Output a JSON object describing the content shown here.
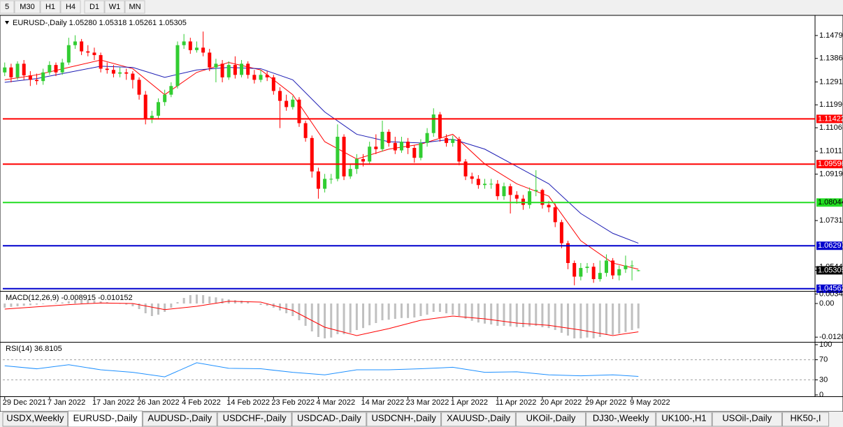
{
  "toolbar": {
    "timeframes": [
      "5",
      "M30",
      "H1",
      "H4",
      "D1",
      "W1",
      "MN"
    ]
  },
  "chart_data": [
    {
      "type": "candlestick",
      "title": "EURUSD-,Daily  1.05280 1.05318 1.05261 1.05305",
      "up_color": "#32cd32",
      "down_color": "#ff0000",
      "xlim": [
        -0.3,
        126.6
      ],
      "xticks": [
        {
          "value": 0,
          "label": "29 Dec 2021"
        },
        {
          "value": 7,
          "label": "7 Jan 2022"
        },
        {
          "value": 14,
          "label": "17 Jan 2022"
        },
        {
          "value": 21,
          "label": "26 Jan 2022"
        },
        {
          "value": 28,
          "label": "4 Feb 2022"
        },
        {
          "value": 35,
          "label": "14 Feb 2022"
        },
        {
          "value": 42,
          "label": "23 Feb 2022"
        },
        {
          "value": 49,
          "label": "4 Mar 2022"
        },
        {
          "value": 56,
          "label": "14 Mar 2022"
        },
        {
          "value": 63,
          "label": "23 Mar 2022"
        },
        {
          "value": 70,
          "label": "1 Apr 2022"
        },
        {
          "value": 77,
          "label": "11 Apr 2022"
        },
        {
          "value": 84,
          "label": "20 Apr 2022"
        },
        {
          "value": 91,
          "label": "29 Apr 2022"
        },
        {
          "value": 98,
          "label": "9 May 2022"
        }
      ],
      "ylim": [
        1.045,
        1.1552
      ],
      "yticks": [
        {
          "value": 1.1479,
          "label": "1.14790"
        },
        {
          "value": 1.13865,
          "label": "1.13865"
        },
        {
          "value": 1.12915,
          "label": "1.12915"
        },
        {
          "value": 1.1199,
          "label": "1.11990"
        },
        {
          "value": 1.11065,
          "label": "1.11065"
        },
        {
          "value": 1.10115,
          "label": "1.10115"
        },
        {
          "value": 1.0919,
          "label": "1.09190"
        },
        {
          "value": 1.07315,
          "label": "1.07315"
        },
        {
          "value": 1.0544,
          "label": "1.05440"
        }
      ],
      "levels": [
        {
          "value": 1.11422,
          "color": "#ff0000",
          "text_color": "#ffffff"
        },
        {
          "value": 1.09596,
          "color": "#ff0000",
          "text_color": "#ffffff"
        },
        {
          "value": 1.08044,
          "color": "#22dd22",
          "text_color": "#000000"
        },
        {
          "value": 1.06297,
          "color": "#0000cd",
          "text_color": "#ffffff"
        },
        {
          "value": 1.04562,
          "color": "#0000cd",
          "text_color": "#ffffff"
        }
      ],
      "last_price": 1.05305,
      "ohlc": [
        [
          1.133,
          1.137,
          1.1315,
          1.135
        ],
        [
          1.135,
          1.1365,
          1.129,
          1.131
        ],
        [
          1.131,
          1.1375,
          1.13,
          1.1365
        ],
        [
          1.1365,
          1.138,
          1.13,
          1.1318
        ],
        [
          1.1318,
          1.1335,
          1.1275,
          1.13
        ],
        [
          1.13,
          1.1325,
          1.128,
          1.1295
        ],
        [
          1.1295,
          1.1345,
          1.128,
          1.133
        ],
        [
          1.133,
          1.1375,
          1.132,
          1.136
        ],
        [
          1.136,
          1.137,
          1.1315,
          1.133
        ],
        [
          1.133,
          1.1385,
          1.132,
          1.137
        ],
        [
          1.137,
          1.147,
          1.136,
          1.144
        ],
        [
          1.144,
          1.148,
          1.1425,
          1.1455
        ],
        [
          1.1455,
          1.1465,
          1.14,
          1.1415
        ],
        [
          1.1415,
          1.144,
          1.1395,
          1.141
        ],
        [
          1.141,
          1.143,
          1.138,
          1.14
        ],
        [
          1.14,
          1.141,
          1.133,
          1.1345
        ],
        [
          1.1345,
          1.137,
          1.1325,
          1.134
        ],
        [
          1.134,
          1.136,
          1.131,
          1.1325
        ],
        [
          1.1325,
          1.135,
          1.131,
          1.133
        ],
        [
          1.133,
          1.1345,
          1.13,
          1.1325
        ],
        [
          1.1325,
          1.1335,
          1.1265,
          1.13
        ],
        [
          1.13,
          1.131,
          1.122,
          1.124
        ],
        [
          1.124,
          1.1255,
          1.112,
          1.1145
        ],
        [
          1.1145,
          1.1175,
          1.1125,
          1.1155
        ],
        [
          1.1155,
          1.1225,
          1.114,
          1.121
        ],
        [
          1.121,
          1.126,
          1.1195,
          1.124
        ],
        [
          1.124,
          1.129,
          1.123,
          1.1275
        ],
        [
          1.1275,
          1.1455,
          1.1265,
          1.144
        ],
        [
          1.144,
          1.1485,
          1.1425,
          1.1455
        ],
        [
          1.1455,
          1.147,
          1.1405,
          1.142
        ],
        [
          1.142,
          1.1455,
          1.141,
          1.143
        ],
        [
          1.143,
          1.1495,
          1.1395,
          1.141
        ],
        [
          1.141,
          1.1425,
          1.1335,
          1.135
        ],
        [
          1.135,
          1.1385,
          1.129,
          1.1365
        ],
        [
          1.1365,
          1.138,
          1.129,
          1.131
        ],
        [
          1.131,
          1.1375,
          1.13,
          1.136
        ],
        [
          1.136,
          1.1395,
          1.1305,
          1.132
        ],
        [
          1.132,
          1.138,
          1.131,
          1.1365
        ],
        [
          1.1365,
          1.1375,
          1.1305,
          1.132
        ],
        [
          1.132,
          1.134,
          1.1285,
          1.13
        ],
        [
          1.13,
          1.134,
          1.129,
          1.132
        ],
        [
          1.132,
          1.1335,
          1.1295,
          1.131
        ],
        [
          1.131,
          1.132,
          1.124,
          1.1255
        ],
        [
          1.1255,
          1.127,
          1.1105,
          1.1215
        ],
        [
          1.1215,
          1.124,
          1.1175,
          1.119
        ],
        [
          1.119,
          1.1235,
          1.118,
          1.122
        ],
        [
          1.122,
          1.123,
          1.111,
          1.1125
        ],
        [
          1.1125,
          1.1135,
          1.105,
          1.1065
        ],
        [
          1.1065,
          1.1075,
          1.0905,
          1.093
        ],
        [
          1.093,
          1.0945,
          1.082,
          1.086
        ],
        [
          1.086,
          1.092,
          1.0845,
          1.09
        ],
        [
          1.09,
          1.092,
          1.088,
          1.09
        ],
        [
          1.09,
          1.112,
          1.089,
          1.107
        ],
        [
          1.107,
          1.108,
          1.0895,
          1.091
        ],
        [
          1.091,
          1.096,
          1.09,
          1.094
        ],
        [
          1.094,
          1.1,
          1.092,
          1.098
        ],
        [
          1.098,
          1.1,
          1.095,
          1.097
        ],
        [
          1.097,
          1.105,
          1.096,
          1.103
        ],
        [
          1.103,
          1.108,
          1.1,
          1.102
        ],
        [
          1.102,
          1.1135,
          1.101,
          1.109
        ],
        [
          1.109,
          1.11,
          1.103,
          1.1045
        ],
        [
          1.1045,
          1.107,
          1.1,
          1.1015
        ],
        [
          1.1015,
          1.107,
          1.1005,
          1.105
        ],
        [
          1.105,
          1.1065,
          1.1,
          1.1025
        ],
        [
          1.1025,
          1.1035,
          1.0965,
          1.0985
        ],
        [
          1.0985,
          1.106,
          1.0975,
          1.1045
        ],
        [
          1.1045,
          1.1105,
          1.103,
          1.1085
        ],
        [
          1.1085,
          1.1185,
          1.107,
          1.116
        ],
        [
          1.116,
          1.117,
          1.105,
          1.1065
        ],
        [
          1.1065,
          1.108,
          1.103,
          1.1045
        ],
        [
          1.1045,
          1.1075,
          1.103,
          1.106
        ],
        [
          1.106,
          1.107,
          1.0955,
          1.097
        ],
        [
          1.097,
          1.098,
          1.0895,
          1.091
        ],
        [
          1.091,
          1.0925,
          1.088,
          1.09
        ],
        [
          1.09,
          1.0915,
          1.086,
          1.0875
        ],
        [
          1.0875,
          1.09,
          1.086,
          1.088
        ],
        [
          1.088,
          1.09,
          1.086,
          1.088
        ],
        [
          1.088,
          1.0895,
          1.0815,
          1.083
        ],
        [
          1.083,
          1.0885,
          1.0815,
          1.087
        ],
        [
          1.087,
          1.088,
          1.076,
          1.0835
        ],
        [
          1.0835,
          1.085,
          1.08,
          1.082
        ],
        [
          1.082,
          1.0835,
          1.0775,
          1.0795
        ],
        [
          1.0795,
          1.0865,
          1.078,
          1.085
        ],
        [
          1.085,
          1.0935,
          1.083,
          1.0855
        ],
        [
          1.0855,
          1.086,
          1.078,
          1.0795
        ],
        [
          1.0795,
          1.081,
          1.0765,
          1.0785
        ],
        [
          1.0785,
          1.08,
          1.0705,
          1.0725
        ],
        [
          1.0725,
          1.0735,
          1.062,
          1.064
        ],
        [
          1.064,
          1.065,
          1.0535,
          1.056
        ],
        [
          1.056,
          1.057,
          1.047,
          1.0505
        ],
        [
          1.0505,
          1.056,
          1.049,
          1.054
        ],
        [
          1.054,
          1.056,
          1.052,
          1.0545
        ],
        [
          1.0545,
          1.056,
          1.048,
          1.0495
        ],
        [
          1.0495,
          1.057,
          1.0485,
          1.052
        ],
        [
          1.052,
          1.0595,
          1.0505,
          1.057
        ],
        [
          1.057,
          1.058,
          1.0495,
          1.051
        ],
        [
          1.051,
          1.055,
          1.049,
          1.0535
        ],
        [
          1.0535,
          1.059,
          1.052,
          1.055
        ],
        [
          1.055,
          1.057,
          1.049,
          1.055
        ],
        [
          1.0528,
          1.05318,
          1.05261,
          1.05305
        ]
      ],
      "moving_averages": [
        {
          "color": "#ff0000",
          "x": [
            0,
            5,
            10,
            15,
            20,
            25,
            30,
            35,
            40,
            45,
            50,
            55,
            60,
            65,
            70,
            75,
            80,
            85,
            90,
            95,
            99
          ],
          "values": [
            1.13,
            1.132,
            1.135,
            1.138,
            1.1345,
            1.124,
            1.133,
            1.137,
            1.134,
            1.124,
            1.105,
            1.098,
            1.102,
            1.104,
            1.108,
            1.096,
            1.088,
            1.083,
            1.065,
            1.056,
            1.0535
          ]
        },
        {
          "color": "#1c1cb4",
          "x": [
            0,
            5,
            10,
            15,
            20,
            25,
            30,
            35,
            40,
            45,
            50,
            55,
            60,
            65,
            70,
            75,
            80,
            85,
            90,
            95,
            99
          ],
          "values": [
            1.129,
            1.1305,
            1.133,
            1.1355,
            1.135,
            1.131,
            1.134,
            1.135,
            1.1345,
            1.13,
            1.117,
            1.108,
            1.105,
            1.1045,
            1.106,
            1.102,
            1.095,
            1.088,
            1.076,
            1.068,
            1.064
          ]
        }
      ]
    },
    {
      "type": "macd",
      "title": "MACD(12,26,9) -0.008915 -0.010152",
      "ylim": [
        -0.0135,
        0.004
      ],
      "yticks": [
        {
          "value": 0.003406,
          "label": "0.003406"
        },
        {
          "value": 0,
          "label": "0.00"
        },
        {
          "value": -0.01205,
          "label": "-0.01205"
        }
      ],
      "color": "#c0c0c0",
      "values": [
        -0.0015,
        -0.0012,
        -0.001,
        -0.0008,
        -0.0006,
        -0.0004,
        -0.0002,
        0,
        0.0002,
        0.0004,
        0.0008,
        0.0012,
        0.0014,
        0.0013,
        0.0011,
        0.0008,
        0.0005,
        0.0002,
        -0.0001,
        -0.0004,
        -0.001,
        -0.002,
        -0.0035,
        -0.0045,
        -0.004,
        -0.003,
        -0.0015,
        0.0005,
        0.002,
        0.003,
        0.0032,
        0.003,
        0.0025,
        0.0022,
        0.0018,
        0.0015,
        0.0012,
        0.001,
        0.0005,
        0,
        -0.0005,
        -0.0008,
        -0.0015,
        -0.0025,
        -0.0035,
        -0.0045,
        -0.006,
        -0.008,
        -0.01,
        -0.012,
        -0.0125,
        -0.0122,
        -0.011,
        -0.011,
        -0.0105,
        -0.0095,
        -0.0088,
        -0.0078,
        -0.007,
        -0.006,
        -0.0058,
        -0.0055,
        -0.0052,
        -0.0052,
        -0.005,
        -0.0045,
        -0.004,
        -0.003,
        -0.003,
        -0.0035,
        -0.004,
        -0.0045,
        -0.0055,
        -0.0062,
        -0.0068,
        -0.0072,
        -0.0075,
        -0.008,
        -0.008,
        -0.0082,
        -0.0084,
        -0.0085,
        -0.0082,
        -0.008,
        -0.0085,
        -0.0088,
        -0.0095,
        -0.0105,
        -0.0115,
        -0.0125,
        -0.0125,
        -0.0122,
        -0.0125,
        -0.012,
        -0.0112,
        -0.0112,
        -0.0108,
        -0.0102,
        -0.0095,
        -0.008915
      ],
      "signal": {
        "color": "#ff0000",
        "x": [
          0,
          5,
          10,
          15,
          20,
          25,
          30,
          35,
          40,
          45,
          50,
          55,
          60,
          65,
          70,
          75,
          80,
          85,
          90,
          95,
          99
        ],
        "values": [
          -0.002,
          -0.0012,
          -0.0004,
          0.0002,
          0,
          -0.0022,
          -0.001,
          0.0008,
          0.0005,
          -0.0025,
          -0.0085,
          -0.0115,
          -0.009,
          -0.006,
          -0.0045,
          -0.0055,
          -0.007,
          -0.0078,
          -0.0095,
          -0.0115,
          -0.010152
        ]
      }
    },
    {
      "type": "line",
      "title": "RSI(14) 36.8105",
      "ylim": [
        0,
        100
      ],
      "yticks": [
        100,
        70,
        30,
        0
      ],
      "color": "#1e90ff",
      "x": [
        0,
        5,
        10,
        15,
        20,
        25,
        30,
        35,
        40,
        45,
        50,
        55,
        60,
        65,
        70,
        75,
        80,
        85,
        90,
        95,
        99
      ],
      "values": [
        58,
        52,
        60,
        50,
        45,
        36,
        64,
        53,
        52,
        45,
        40,
        50,
        50,
        52,
        55,
        45,
        46,
        40,
        38,
        40,
        36.8105
      ]
    }
  ],
  "tabs": {
    "items": [
      "USDX,Weekly",
      "EURUSD-,Daily",
      "AUDUSD-,Daily",
      "USDCHF-,Daily",
      "USDCAD-,Daily",
      "USDCNH-,Daily",
      "XAUUSD-,Daily",
      "UKOil-,Daily",
      "DJ30-,Weekly",
      "UK100-,H1",
      "USOil-,Daily",
      "HK50-,I"
    ],
    "active_tab": 1
  }
}
